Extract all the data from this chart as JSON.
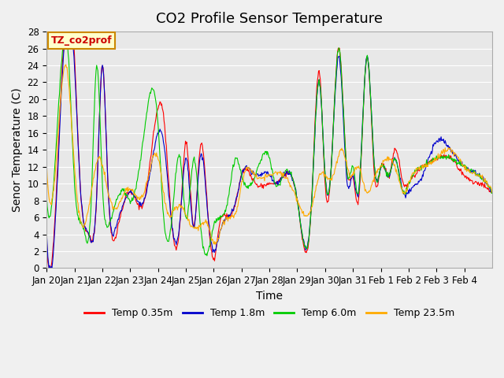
{
  "title": "CO2 Profile Sensor Temperature",
  "xlabel": "Time",
  "ylabel": "Senor Temperature (C)",
  "ylim": [
    0,
    28
  ],
  "yticks": [
    0,
    2,
    4,
    6,
    8,
    10,
    12,
    14,
    16,
    18,
    20,
    22,
    24,
    26,
    28
  ],
  "xtick_labels": [
    "Jan 20",
    "Jan 21",
    "Jan 22",
    "Jan 23",
    "Jan 24",
    "Jan 25",
    "Jan 26",
    "Jan 27",
    "Jan 28",
    "Jan 29",
    "Jan 30",
    "Jan 31",
    "Feb 1",
    "Feb 2",
    "Feb 3",
    "Feb 4"
  ],
  "xtick_positions": [
    0,
    1,
    2,
    3,
    4,
    5,
    6,
    7,
    8,
    9,
    10,
    11,
    12,
    13,
    14,
    15
  ],
  "legend_labels": [
    "Temp 0.35m",
    "Temp 1.8m",
    "Temp 6.0m",
    "Temp 23.5m"
  ],
  "legend_colors": [
    "#ff0000",
    "#0000cc",
    "#00cc00",
    "#ffaa00"
  ],
  "annotation_text": "TZ_co2prof",
  "annotation_color": "#cc0000",
  "annotation_bg": "#ffffcc",
  "annotation_border": "#cc8800",
  "background_color": "#e8e8e8",
  "grid_color": "#ffffff",
  "title_fontsize": 13,
  "label_fontsize": 10,
  "tick_fontsize": 8.5
}
